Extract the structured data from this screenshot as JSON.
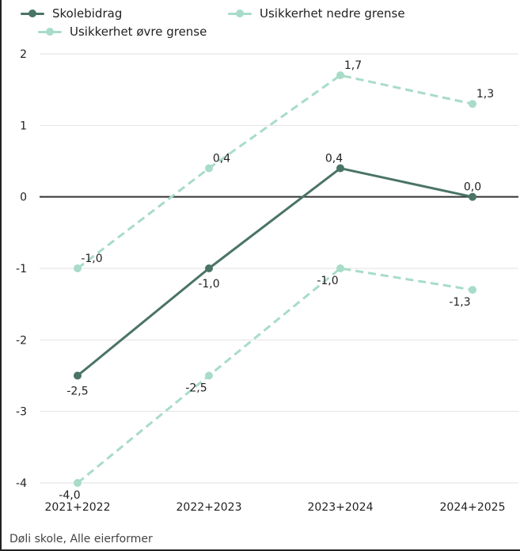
{
  "chart_data": {
    "type": "line",
    "categories": [
      "2021+2022",
      "2022+2023",
      "2023+2024",
      "2024+2025"
    ],
    "series": [
      {
        "name": "Skolebidrag",
        "values": [
          -2.5,
          -1.0,
          0.4,
          0.0
        ],
        "labels": [
          "-2,5",
          "-1,0",
          "0,4",
          "0,0"
        ],
        "color": "#4a7466",
        "dashed": false
      },
      {
        "name": "Usikkerhet nedre grense",
        "values": [
          -4.0,
          -2.5,
          -1.0,
          -1.3
        ],
        "labels": [
          "-4,0",
          "-2,5",
          "-1,0",
          "-1,3"
        ],
        "color": "#a8dcc8",
        "dashed": true
      },
      {
        "name": "Usikkerhet øvre grense",
        "values": [
          -1.0,
          0.4,
          1.7,
          1.3
        ],
        "labels": [
          "-1,0",
          "0,4",
          "1,7",
          "1,3"
        ],
        "color": "#a8dcc8",
        "dashed": true
      }
    ],
    "ylim": [
      -4.2,
      2
    ],
    "yticks": [
      2,
      1,
      0,
      -1,
      -2,
      -3,
      -4
    ],
    "ytick_labels": [
      "2",
      "1",
      "0",
      "-1",
      "-2",
      "-3",
      "-4"
    ],
    "grid": true,
    "legend_position": "top-left",
    "zero_line_color": "#333333",
    "grid_color": "#e2e2e2"
  },
  "footer": "Døli skole, Alle eierformer"
}
